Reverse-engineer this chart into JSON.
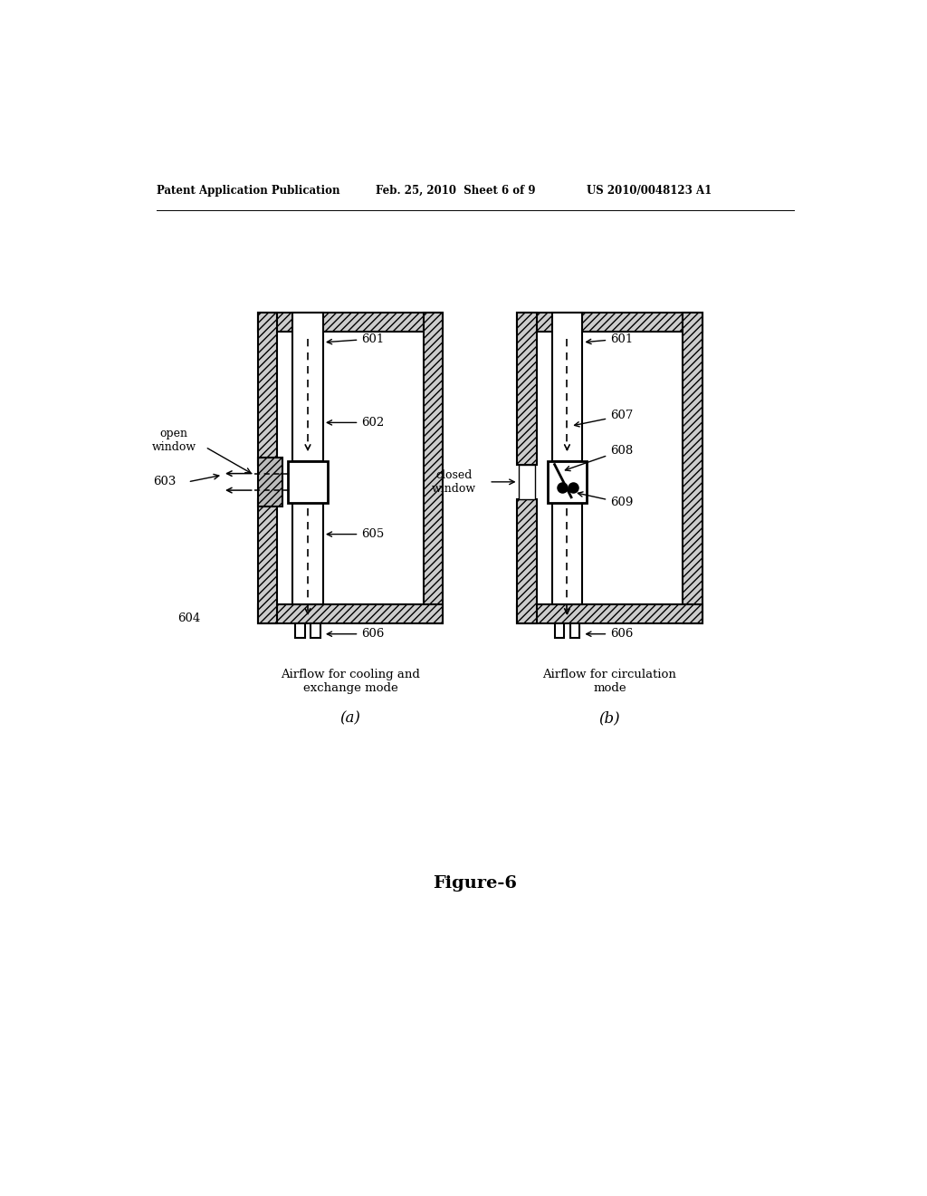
{
  "title_left": "Patent Application Publication",
  "title_center": "Feb. 25, 2010  Sheet 6 of 9",
  "title_right": "US 2010/0048123 A1",
  "figure_label": "Figure-6",
  "caption_a": "Airflow for cooling and\nexchange mode",
  "caption_b": "Airflow for circulation\nmode",
  "label_a": "(a)",
  "label_b": "(b)",
  "bg_color": "#ffffff",
  "line_color": "#000000"
}
